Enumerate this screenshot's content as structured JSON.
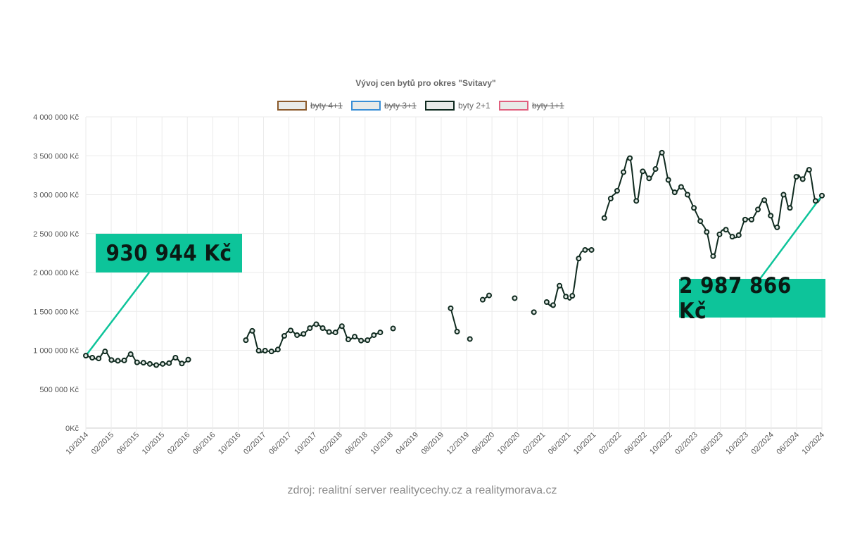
{
  "chart_data": {
    "type": "line",
    "title": "Vývoj cen bytů pro okres \"Svitavy\"",
    "ylim": [
      0,
      4000000
    ],
    "y_ticks": [
      "0Kč",
      "500 000 Kč",
      "1 000 000 Kč",
      "1 500 000 Kč",
      "2 000 000 Kč",
      "2 500 000 Kč",
      "3 000 000 Kč",
      "3 500 000 Kč",
      "4 000 000 Kč"
    ],
    "x_ticks": [
      "10/2014",
      "02/2015",
      "06/2015",
      "10/2015",
      "02/2016",
      "06/2016",
      "10/2016",
      "02/2017",
      "06/2017",
      "10/2017",
      "02/2018",
      "06/2018",
      "10/2018",
      "04/2019",
      "08/2019",
      "12/2019",
      "06/2020",
      "10/2020",
      "02/2021",
      "06/2021",
      "10/2021",
      "02/2022",
      "06/2022",
      "10/2022",
      "02/2023",
      "06/2023",
      "10/2023",
      "02/2024",
      "06/2024",
      "10/2024"
    ],
    "grid": true,
    "legend": [
      {
        "name": "byty 4+1",
        "color": "#8b5a2b",
        "hidden": true
      },
      {
        "name": "byty 3+1",
        "color": "#3a8fd6",
        "hidden": true
      },
      {
        "name": "byty 2+1",
        "color": "#0f2a1f",
        "hidden": false
      },
      {
        "name": "byty 1+1",
        "color": "#e0607e",
        "hidden": true
      }
    ],
    "series": [
      {
        "name": "byty 2+1",
        "color": "#0f2a1f",
        "values": [
          930944,
          905000,
          895000,
          985000,
          875000,
          865000,
          870000,
          950000,
          845000,
          840000,
          825000,
          810000,
          825000,
          835000,
          905000,
          830000,
          880000,
          null,
          null,
          null,
          null,
          null,
          null,
          null,
          null,
          1130000,
          1250000,
          995000,
          995000,
          985000,
          1010000,
          1185000,
          1255000,
          1195000,
          1210000,
          1285000,
          1335000,
          1285000,
          1235000,
          1230000,
          1310000,
          1140000,
          1175000,
          1125000,
          1130000,
          1195000,
          1230000,
          null,
          1280000,
          null,
          null,
          null,
          null,
          null,
          null,
          null,
          null,
          1540000,
          1240000,
          null,
          1145000,
          null,
          1650000,
          1705000,
          null,
          null,
          null,
          1670000,
          null,
          null,
          1490000,
          null,
          1620000,
          1580000,
          1830000,
          1690000,
          1700000,
          2180000,
          2290000,
          2290000,
          null,
          2700000,
          2950000,
          3050000,
          3290000,
          3470000,
          2920000,
          3300000,
          3210000,
          3330000,
          3540000,
          3190000,
          3030000,
          3100000,
          3000000,
          2830000,
          2660000,
          2520000,
          2210000,
          2490000,
          2550000,
          2460000,
          2480000,
          2680000,
          2680000,
          2810000,
          2930000,
          2730000,
          2580000,
          3000000,
          2830000,
          3230000,
          3200000,
          3320000,
          2920000,
          2987866
        ]
      }
    ],
    "callouts": [
      "930 944 Kč",
      "2 987 866 Kč"
    ]
  },
  "source_text": "zdroj: realitní server realitycechy.cz a realitymorava.cz"
}
